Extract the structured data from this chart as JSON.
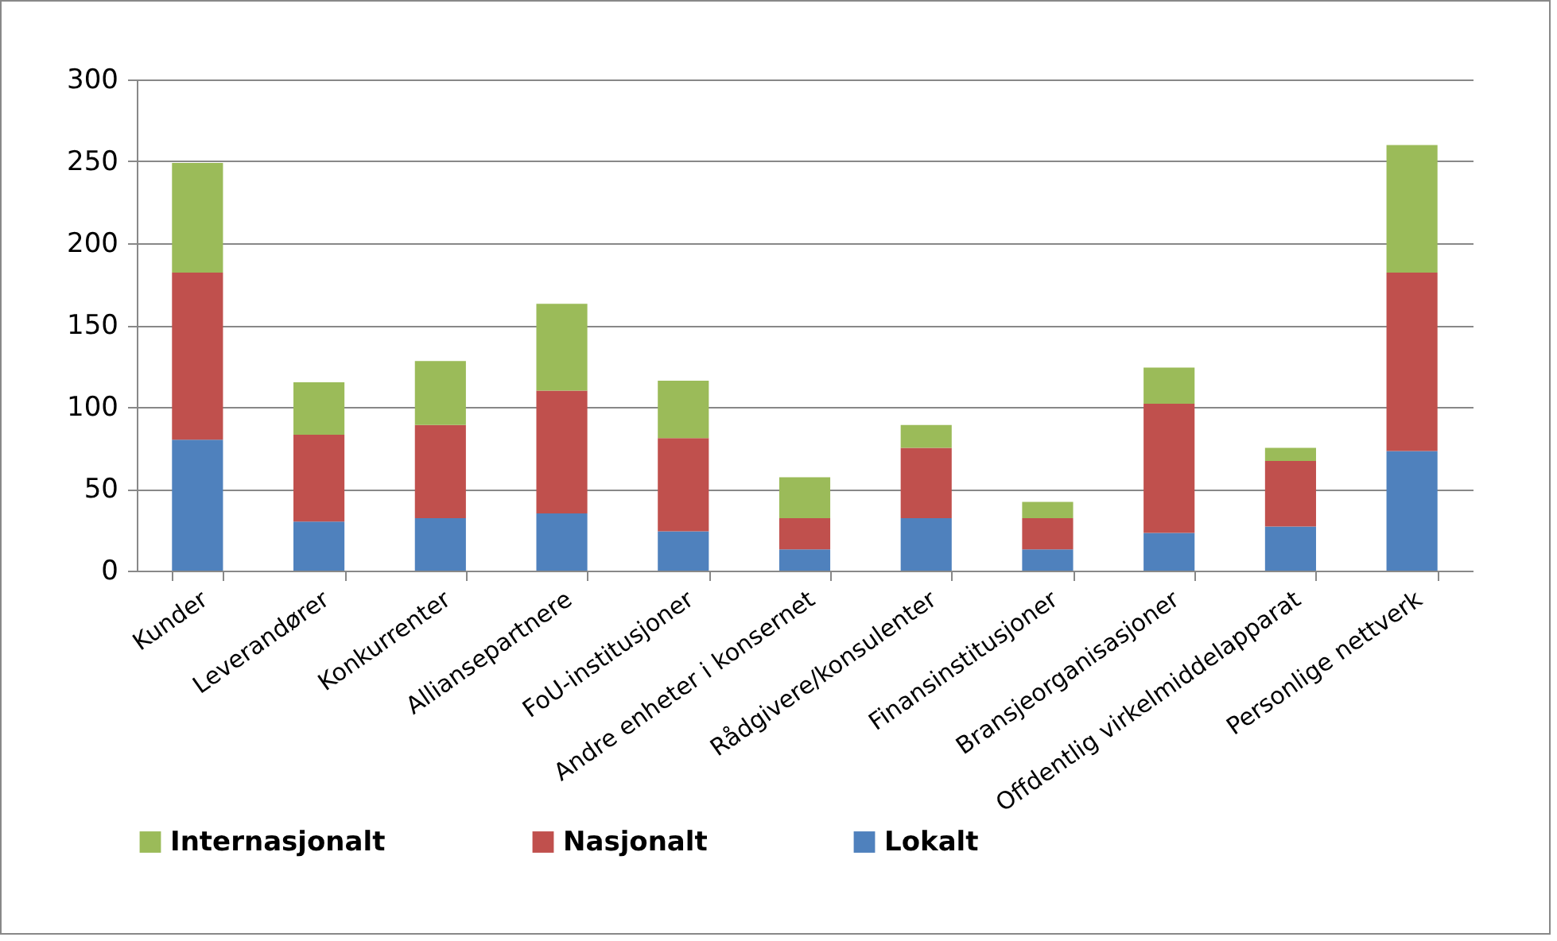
{
  "chart_data": {
    "type": "bar",
    "stacked": true,
    "categories": [
      "Kunder",
      "Leverandører",
      "Konkurrenter",
      "Alliansepartnere",
      "FoU-institusjoner",
      "Andre enheter i konsernet",
      "Rådgivere/konsulenter",
      "Finansinstitusjoner",
      "Bransjeorganisasjoner",
      "Offdentlig virkelmiddelapparat",
      "Personlige nettverk"
    ],
    "series": [
      {
        "name": "Lokalt",
        "color": "#4f81bd",
        "values": [
          80,
          30,
          32,
          35,
          24,
          13,
          32,
          13,
          23,
          27,
          73
        ]
      },
      {
        "name": "Nasjonalt",
        "color": "#c0504d",
        "values": [
          102,
          53,
          57,
          75,
          57,
          19,
          43,
          19,
          79,
          40,
          109
        ]
      },
      {
        "name": "Internasjonalt",
        "color": "#9bbb59",
        "values": [
          67,
          32,
          39,
          53,
          35,
          25,
          14,
          10,
          22,
          8,
          78
        ]
      }
    ],
    "ylim": [
      0,
      300
    ],
    "yticks": [
      0,
      50,
      100,
      150,
      200,
      250,
      300
    ],
    "grid": "y",
    "legend": "bottom"
  }
}
